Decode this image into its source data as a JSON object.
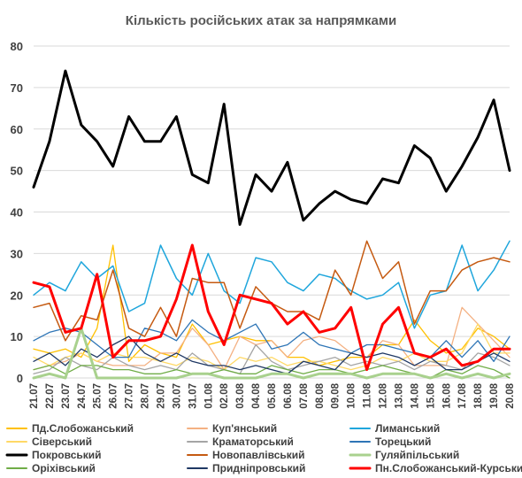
{
  "chart_data": {
    "type": "line",
    "title": "Кількість російських атак за напрямками",
    "ylim": [
      0,
      80
    ],
    "yticks": [
      "0",
      "10",
      "20",
      "30",
      "40",
      "50",
      "60",
      "70",
      "80"
    ],
    "grid": true,
    "legend_position": "bottom",
    "categories": [
      "21.07",
      "22.07",
      "23.07",
      "24.07",
      "25.07",
      "26.07",
      "27.07",
      "28.07",
      "29.07",
      "30.07",
      "31.07",
      "01.08",
      "02.08",
      "03.08",
      "04.08",
      "05.08",
      "06.08",
      "07.08",
      "08.08",
      "09.08",
      "10.08",
      "11.08",
      "12.08",
      "13.08",
      "14.08",
      "15.08",
      "16.08",
      "17.08",
      "18.08",
      "19.08",
      "20.08"
    ],
    "series": [
      {
        "name": "Пд.Слобожанський",
        "color": "#ffc000",
        "width": 1.3,
        "values": [
          7,
          6,
          7,
          5,
          12,
          32,
          4,
          8,
          6,
          5,
          13,
          8,
          9,
          10,
          9,
          9,
          5,
          5,
          3,
          4,
          5,
          5,
          8,
          8,
          14,
          9,
          6,
          7,
          12,
          10,
          7
        ]
      },
      {
        "name": "Куп'янський",
        "color": "#f4b183",
        "width": 1.3,
        "values": [
          2,
          3,
          4,
          6,
          4,
          3,
          3,
          3,
          6,
          6,
          12,
          8,
          2,
          10,
          8,
          9,
          5,
          9,
          10,
          9,
          6,
          5,
          9,
          8,
          3,
          3,
          3,
          17,
          13,
          9,
          5
        ]
      },
      {
        "name": "Лиманський",
        "color": "#1fa6dc",
        "width": 1.5,
        "values": [
          20,
          23,
          21,
          28,
          24,
          27,
          16,
          18,
          32,
          24,
          20,
          30,
          21,
          18,
          29,
          28,
          23,
          21,
          25,
          24,
          21,
          19,
          20,
          23,
          12,
          20,
          21,
          32,
          21,
          26,
          33
        ]
      },
      {
        "name": "Сіверський",
        "color": "#ffd966",
        "width": 1.3,
        "values": [
          5,
          3,
          5,
          6,
          4,
          6,
          5,
          5,
          4,
          3,
          5,
          4,
          2,
          5,
          4,
          5,
          3,
          4,
          4,
          3,
          2,
          3,
          5,
          4,
          6,
          4,
          4,
          6,
          13,
          6,
          6
        ]
      },
      {
        "name": "Краматорський",
        "color": "#a5a5a5",
        "width": 1.3,
        "values": [
          1,
          2,
          5,
          3,
          2,
          5,
          3,
          2,
          3,
          2,
          6,
          3,
          2,
          1,
          8,
          4,
          2,
          3,
          4,
          5,
          3,
          4,
          3,
          4,
          2,
          4,
          3,
          2,
          6,
          5,
          3
        ]
      },
      {
        "name": "Торецький",
        "color": "#2e75b6",
        "width": 1.3,
        "values": [
          9,
          11,
          12,
          11,
          8,
          5,
          5,
          12,
          11,
          9,
          14,
          11,
          9,
          11,
          13,
          7,
          8,
          11,
          8,
          7,
          6,
          8,
          8,
          7,
          6,
          5,
          9,
          5,
          9,
          4,
          10
        ]
      },
      {
        "name": "Покровський",
        "color": "#000000",
        "width": 3,
        "values": [
          46,
          57,
          74,
          61,
          57,
          51,
          63,
          57,
          57,
          63,
          49,
          47,
          66,
          37,
          49,
          45,
          52,
          38,
          42,
          45,
          43,
          42,
          48,
          47,
          56,
          53,
          45,
          51,
          58,
          67,
          50
        ]
      },
      {
        "name": "Новопавлівський",
        "color": "#c55a11",
        "width": 1.5,
        "values": [
          17,
          18,
          9,
          15,
          14,
          26,
          12,
          10,
          17,
          10,
          24,
          23,
          23,
          12,
          22,
          18,
          16,
          16,
          14,
          26,
          20,
          33,
          24,
          28,
          13,
          21,
          21,
          26,
          28,
          29,
          28
        ]
      },
      {
        "name": "Гуляйпільський",
        "color": "#a9d18e",
        "width": 3,
        "values": [
          0,
          1,
          0,
          12,
          0,
          0,
          0,
          0,
          0,
          0,
          1,
          1,
          0,
          0,
          0,
          1,
          1,
          0,
          1,
          1,
          1,
          0,
          1,
          1,
          1,
          0,
          1,
          0,
          1,
          0,
          1
        ]
      },
      {
        "name": "Оріхівський",
        "color": "#70ad47",
        "width": 1.3,
        "values": [
          2,
          3,
          1,
          3,
          3,
          2,
          2,
          1,
          1,
          2,
          1,
          1,
          2,
          1,
          1,
          3,
          2,
          1,
          2,
          2,
          1,
          2,
          3,
          2,
          1,
          0,
          2,
          1,
          3,
          2,
          0
        ]
      },
      {
        "name": "Придніпровський",
        "color": "#1f3864",
        "width": 1.3,
        "values": [
          4,
          6,
          3,
          7,
          5,
          8,
          10,
          6,
          4,
          6,
          4,
          3,
          3,
          2,
          3,
          2,
          1,
          4,
          3,
          2,
          6,
          5,
          6,
          5,
          3,
          5,
          2,
          2,
          4,
          6,
          4
        ]
      },
      {
        "name": "Пн.Слобожанський-Курський",
        "color": "#ff0000",
        "width": 3,
        "values": [
          23,
          22,
          11,
          12,
          25,
          5,
          9,
          9,
          10,
          19,
          32,
          16,
          8,
          20,
          19,
          18,
          13,
          16,
          11,
          12,
          17,
          2,
          13,
          17,
          6,
          5,
          7,
          3,
          4,
          7,
          7
        ]
      }
    ]
  }
}
